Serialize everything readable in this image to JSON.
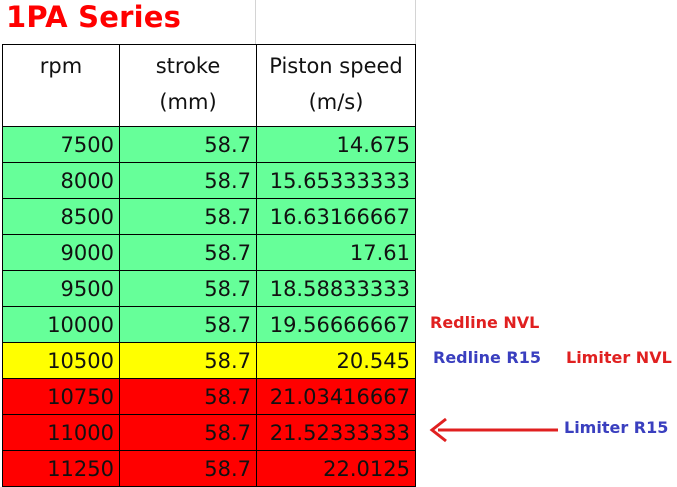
{
  "title": "1PA Series",
  "headers": [
    {
      "line1": "rpm",
      "line2": ""
    },
    {
      "line1": "stroke",
      "line2": "(mm)"
    },
    {
      "line1": "Piston speed",
      "line2": "(m/s)"
    }
  ],
  "rows": [
    {
      "rpm": "7500",
      "stroke": "58.7",
      "speed": "14.675",
      "zone": "green"
    },
    {
      "rpm": "8000",
      "stroke": "58.7",
      "speed": "15.65333333",
      "zone": "green"
    },
    {
      "rpm": "8500",
      "stroke": "58.7",
      "speed": "16.63166667",
      "zone": "green"
    },
    {
      "rpm": "9000",
      "stroke": "58.7",
      "speed": "17.61",
      "zone": "green"
    },
    {
      "rpm": "9500",
      "stroke": "58.7",
      "speed": "18.58833333",
      "zone": "green"
    },
    {
      "rpm": "10000",
      "stroke": "58.7",
      "speed": "19.56666667",
      "zone": "green"
    },
    {
      "rpm": "10500",
      "stroke": "58.7",
      "speed": "20.545",
      "zone": "yellow"
    },
    {
      "rpm": "10750",
      "stroke": "58.7",
      "speed": "21.03416667",
      "zone": "red"
    },
    {
      "rpm": "11000",
      "stroke": "58.7",
      "speed": "21.52333333",
      "zone": "red"
    },
    {
      "rpm": "11250",
      "stroke": "58.7",
      "speed": "22.0125",
      "zone": "red"
    }
  ],
  "annotations": {
    "redline_nvl": "Redline NVL",
    "redline_r15": "Redline R15",
    "limiter_nvl": "Limiter NVL",
    "limiter_r15": "Limiter R15"
  },
  "colors": {
    "title": "#ff0000",
    "green_row": "#66ff99",
    "yellow_row": "#ffff00",
    "red_row": "#ff0000",
    "red_note": "#e02020",
    "blue_note": "#3a3fbf",
    "arrow": "#e02020"
  },
  "icons": {
    "arrow": "left-arrow-icon"
  }
}
